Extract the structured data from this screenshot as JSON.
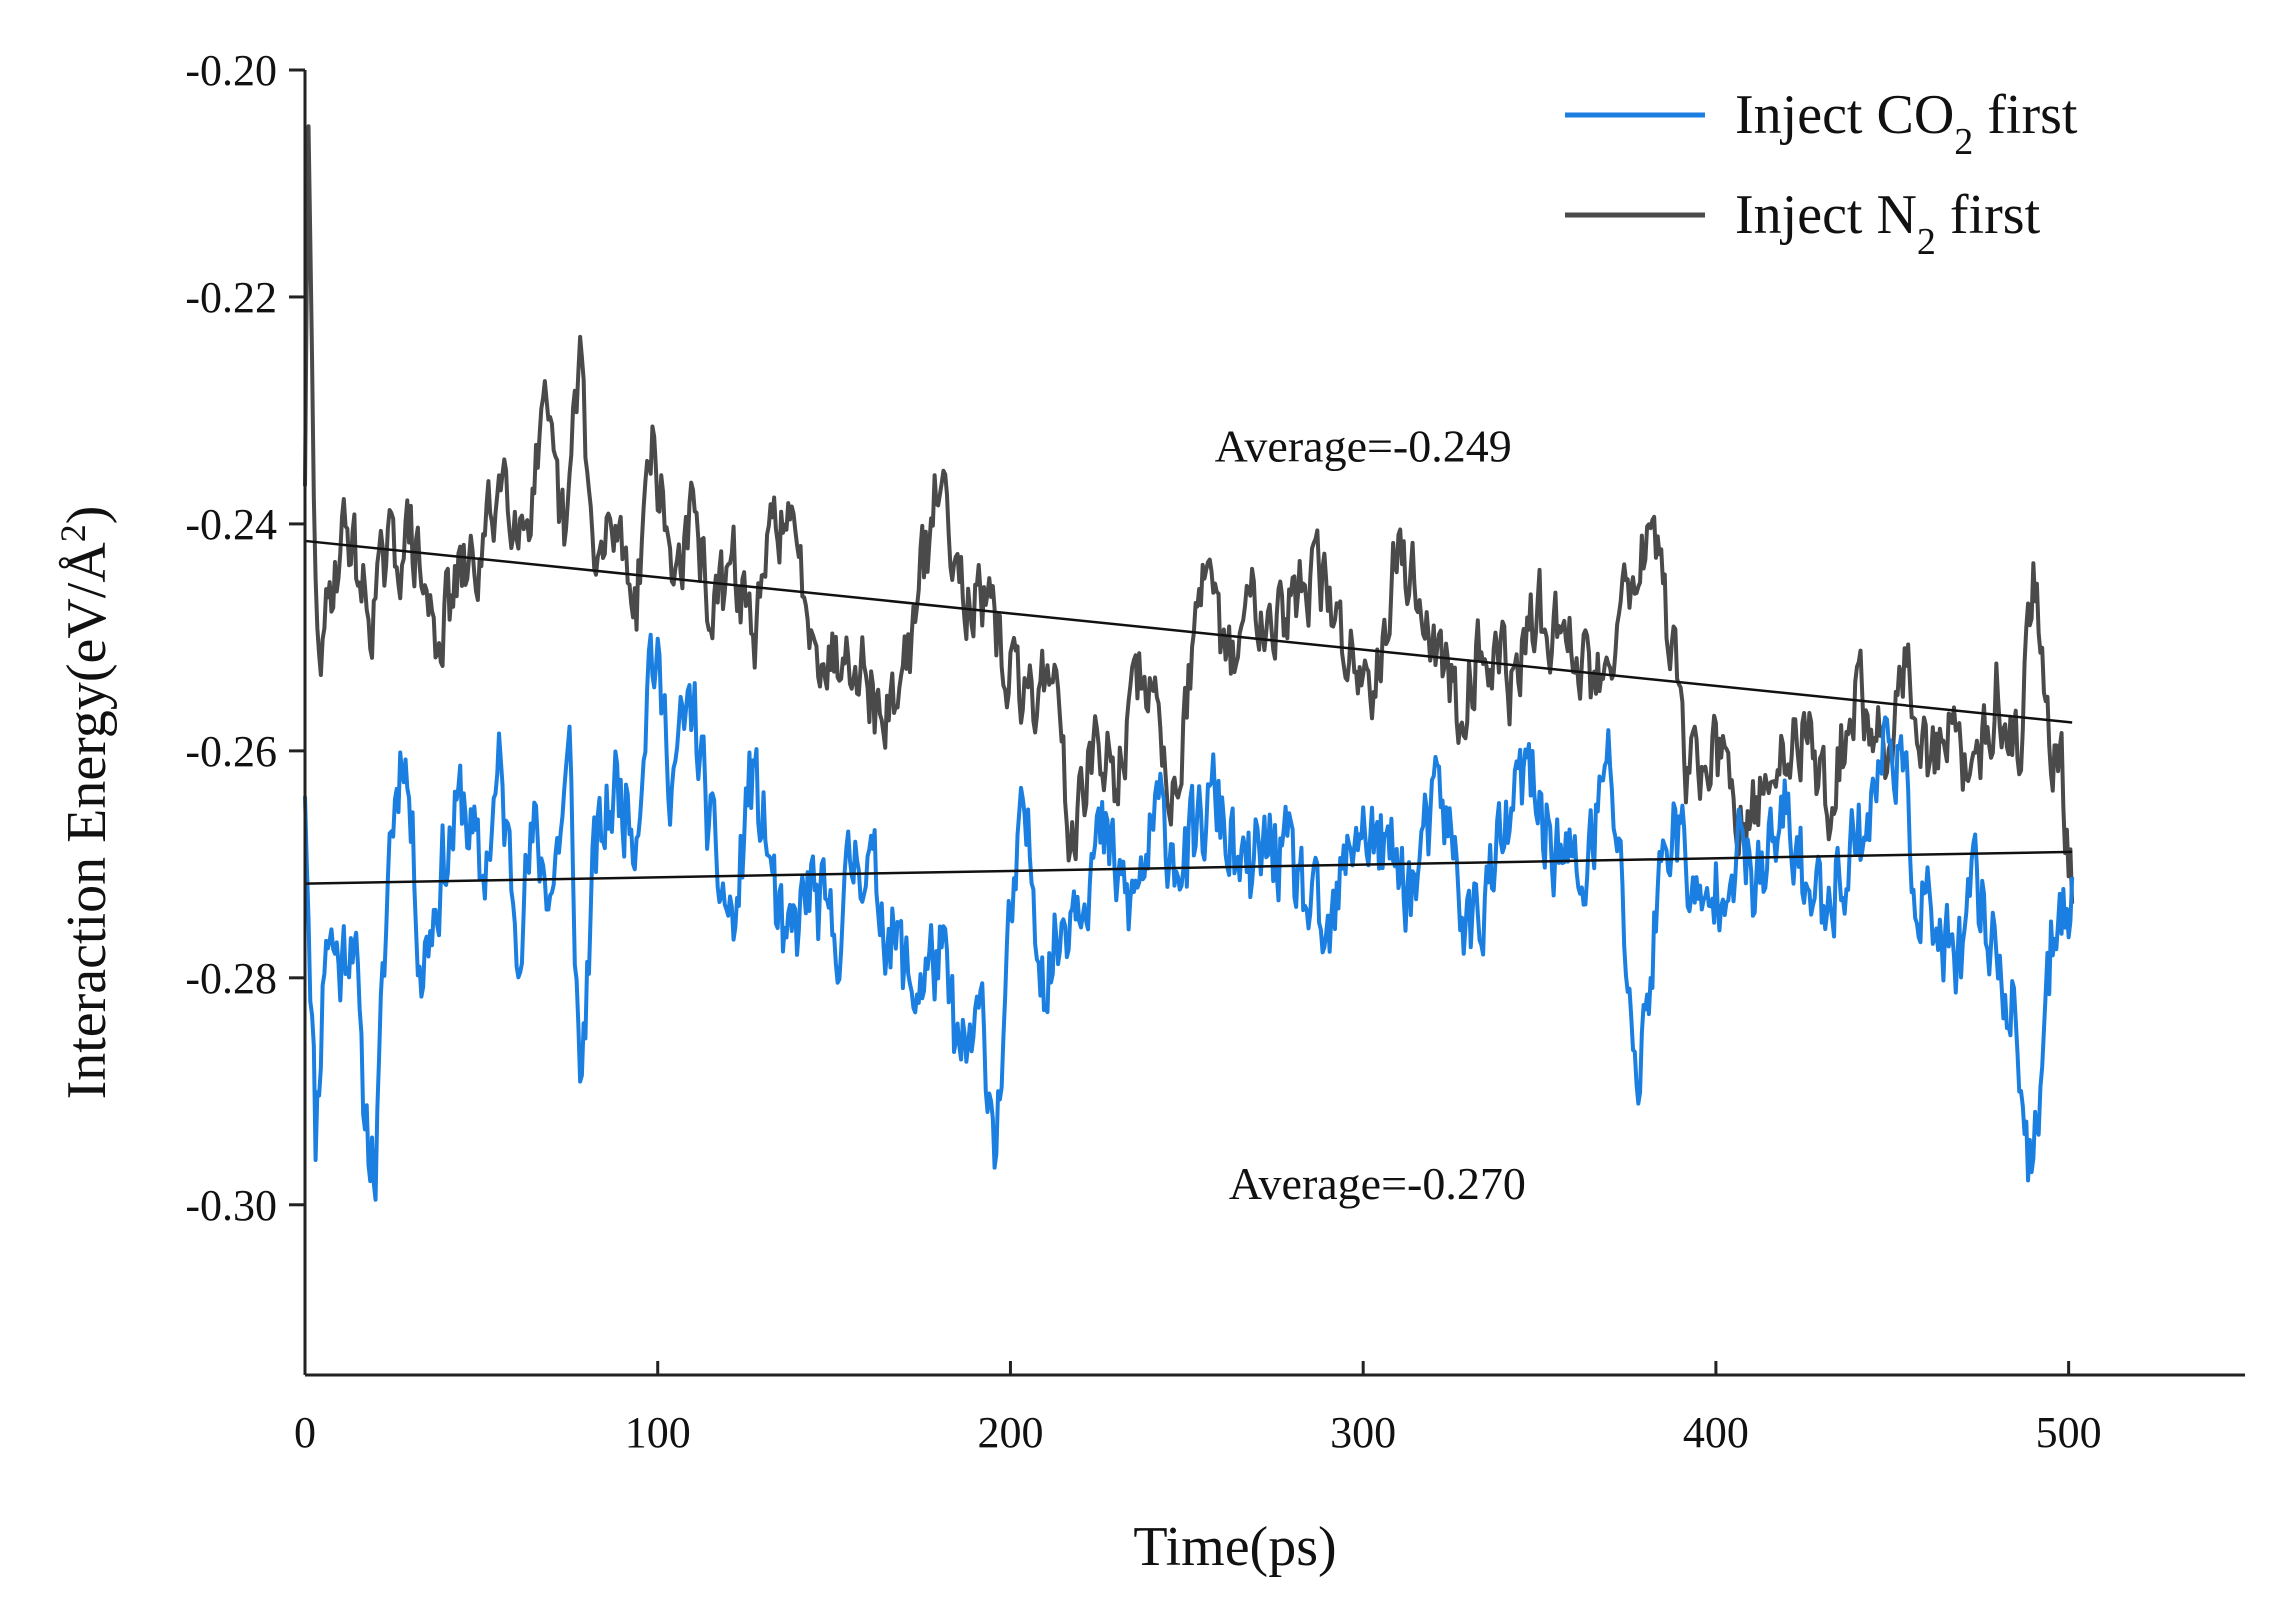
{
  "chart_data": {
    "type": "line",
    "title": "",
    "xlabel": "Time(ps)",
    "ylabel": "Interaction Energy(eV/Å²)",
    "ylabel_parts": {
      "main": "Interaction Energy(eV/Å",
      "sup": "2",
      "close": ")"
    },
    "xlim": [
      0,
      550
    ],
    "ylim": [
      -0.315,
      -0.2
    ],
    "x_ticks": [
      0,
      100,
      200,
      300,
      400,
      500
    ],
    "x_tick_labels": [
      "0",
      "100",
      "200",
      "300",
      "400",
      "500"
    ],
    "y_ticks": [
      -0.2,
      -0.22,
      -0.24,
      -0.26,
      -0.28,
      -0.3
    ],
    "y_tick_labels": [
      "-0.20",
      "-0.22",
      "-0.24",
      "-0.26",
      "-0.28",
      "-0.30"
    ],
    "grid": false,
    "legend_position": "top-right",
    "series": [
      {
        "name": "Inject CO2 first",
        "legend_parts": {
          "pre": "Inject CO",
          "sub": "2",
          "post": " first"
        },
        "color": "#1a7fe0",
        "x_range": [
          0,
          501
        ],
        "anchors_x": [
          0,
          2,
          3,
          6,
          10,
          14,
          16,
          20,
          24,
          28,
          33,
          39,
          45,
          50,
          55,
          60,
          65,
          70,
          75,
          78,
          82,
          88,
          94,
          98,
          104,
          110,
          116,
          122,
          126,
          131,
          136,
          143,
          150,
          157,
          164,
          172,
          180,
          186,
          192,
          196,
          200,
          204,
          210,
          218,
          226,
          234,
          242,
          250,
          258,
          266,
          274,
          282,
          290,
          298,
          306,
          314,
          322,
          330,
          338,
          346,
          354,
          362,
          370,
          378,
          383,
          388,
          396,
          404,
          412,
          420,
          428,
          436,
          444,
          450,
          456,
          462,
          468,
          474,
          480,
          485,
          490,
          493,
          497,
          501
        ],
        "anchors_y": [
          -0.262,
          -0.283,
          -0.294,
          -0.275,
          -0.279,
          -0.274,
          -0.29,
          -0.297,
          -0.268,
          -0.258,
          -0.279,
          -0.27,
          -0.264,
          -0.272,
          -0.262,
          -0.275,
          -0.268,
          -0.272,
          -0.261,
          -0.29,
          -0.27,
          -0.263,
          -0.266,
          -0.25,
          -0.262,
          -0.256,
          -0.27,
          -0.276,
          -0.262,
          -0.268,
          -0.279,
          -0.272,
          -0.277,
          -0.268,
          -0.274,
          -0.281,
          -0.278,
          -0.288,
          -0.284,
          -0.294,
          -0.276,
          -0.266,
          -0.28,
          -0.272,
          -0.268,
          -0.274,
          -0.266,
          -0.27,
          -0.264,
          -0.272,
          -0.268,
          -0.272,
          -0.278,
          -0.266,
          -0.269,
          -0.272,
          -0.264,
          -0.276,
          -0.27,
          -0.262,
          -0.268,
          -0.272,
          -0.261,
          -0.29,
          -0.274,
          -0.265,
          -0.276,
          -0.268,
          -0.272,
          -0.266,
          -0.274,
          -0.27,
          -0.265,
          -0.257,
          -0.27,
          -0.276,
          -0.28,
          -0.272,
          -0.278,
          -0.284,
          -0.3,
          -0.284,
          -0.272,
          -0.273
        ],
        "noise_amplitude": 0.007,
        "seed": 11
      },
      {
        "name": "Inject N2 first",
        "legend_parts": {
          "pre": "Inject N",
          "sub": "2",
          "post": " first"
        },
        "color": "#4a4a4a",
        "x_range": [
          0,
          501
        ],
        "anchors_x": [
          0,
          1,
          2,
          3,
          5,
          8,
          12,
          18,
          24,
          30,
          37,
          44,
          50,
          56,
          62,
          68,
          74,
          78,
          82,
          88,
          94,
          98,
          104,
          110,
          116,
          122,
          128,
          134,
          140,
          148,
          156,
          164,
          172,
          180,
          188,
          196,
          204,
          212,
          218,
          222,
          230,
          238,
          246,
          254,
          262,
          270,
          278,
          286,
          294,
          302,
          310,
          318,
          326,
          334,
          342,
          350,
          358,
          366,
          374,
          382,
          386,
          392,
          400,
          408,
          416,
          424,
          432,
          440,
          448,
          454,
          460,
          466,
          472,
          480,
          486,
          490,
          494,
          498,
          501
        ],
        "anchors_y": [
          -0.235,
          -0.207,
          -0.228,
          -0.247,
          -0.252,
          -0.244,
          -0.24,
          -0.248,
          -0.243,
          -0.241,
          -0.25,
          -0.245,
          -0.243,
          -0.235,
          -0.24,
          -0.232,
          -0.242,
          -0.224,
          -0.245,
          -0.24,
          -0.246,
          -0.232,
          -0.244,
          -0.24,
          -0.248,
          -0.244,
          -0.25,
          -0.238,
          -0.244,
          -0.252,
          -0.25,
          -0.258,
          -0.25,
          -0.236,
          -0.246,
          -0.25,
          -0.256,
          -0.252,
          -0.27,
          -0.26,
          -0.262,
          -0.252,
          -0.264,
          -0.246,
          -0.252,
          -0.246,
          -0.248,
          -0.244,
          -0.25,
          -0.254,
          -0.242,
          -0.248,
          -0.256,
          -0.25,
          -0.254,
          -0.248,
          -0.25,
          -0.254,
          -0.246,
          -0.24,
          -0.248,
          -0.262,
          -0.26,
          -0.268,
          -0.262,
          -0.258,
          -0.264,
          -0.255,
          -0.26,
          -0.252,
          -0.262,
          -0.258,
          -0.264,
          -0.254,
          -0.26,
          -0.244,
          -0.256,
          -0.262,
          -0.272
        ],
        "noise_amplitude": 0.006,
        "seed": 29
      }
    ],
    "trend_lines": [
      {
        "series": "Inject CO2 first",
        "x": [
          0,
          501
        ],
        "y": [
          -0.2717,
          -0.2689
        ]
      },
      {
        "series": "Inject N2 first",
        "x": [
          0,
          501
        ],
        "y": [
          -0.2415,
          -0.2575
        ]
      }
    ],
    "annotations": [
      {
        "text": "Average=-0.249",
        "x": 300,
        "y": -0.2345
      },
      {
        "text": "Average=-0.270",
        "x": 304,
        "y": -0.2995
      }
    ]
  }
}
